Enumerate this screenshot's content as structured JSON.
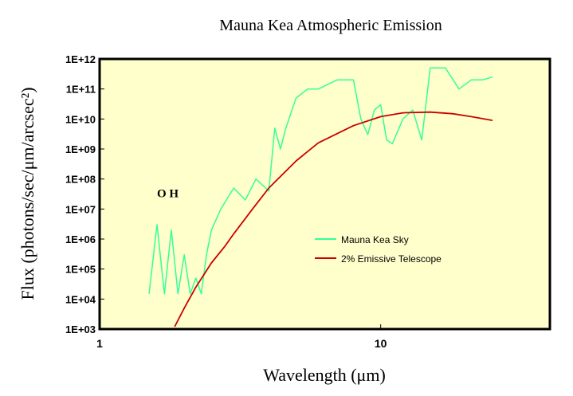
{
  "chart_data": {
    "type": "line",
    "title": "Mauna Kea Atmospheric Emission",
    "xlabel": "Wavelength (μm)",
    "ylabel": "Flux (photons/sec/μm/arcsec²)",
    "xscale": "log",
    "yscale": "log",
    "xlim": [
      1,
      40
    ],
    "ylim": [
      1000,
      1000000000000
    ],
    "xticks": [
      {
        "value": 1,
        "label": "1"
      },
      {
        "value": 10,
        "label": "10"
      }
    ],
    "yticks": [
      {
        "value": 1000,
        "label": "1E+03"
      },
      {
        "value": 10000,
        "label": "1E+04"
      },
      {
        "value": 100000,
        "label": "1E+05"
      },
      {
        "value": 1000000,
        "label": "1E+06"
      },
      {
        "value": 10000000,
        "label": "1E+07"
      },
      {
        "value": 100000000,
        "label": "1E+08"
      },
      {
        "value": 1000000000,
        "label": "1E+09"
      },
      {
        "value": 10000000000,
        "label": "1E+10"
      },
      {
        "value": 100000000000,
        "label": "1E+11"
      },
      {
        "value": 1000000000000,
        "label": "1E+12"
      }
    ],
    "grid": false,
    "legend_position": "right-center",
    "background_color": "#ffffcc",
    "annotations": [
      {
        "text": "O H",
        "x": 1.6,
        "y": 25000000
      }
    ],
    "series": [
      {
        "name": "Mauna Kea Sky",
        "color": "#33ff99",
        "x": [
          1.5,
          1.6,
          1.7,
          1.8,
          1.9,
          2.0,
          2.1,
          2.2,
          2.3,
          2.4,
          2.5,
          2.7,
          3.0,
          3.3,
          3.6,
          4.0,
          4.2,
          4.4,
          4.6,
          5.0,
          5.5,
          6.0,
          7.0,
          8.0,
          8.5,
          9.0,
          9.5,
          10.0,
          10.5,
          11.0,
          12.0,
          13.0,
          14.0,
          15.0,
          17.0,
          19.0,
          21.0,
          23.0,
          25.0
        ],
        "y": [
          15000.0,
          3000000.0,
          15000.0,
          2000000.0,
          15000.0,
          300000.0,
          15000.0,
          50000.0,
          15000.0,
          300000.0,
          2000000.0,
          10000000.0,
          50000000.0,
          20000000.0,
          100000000.0,
          40000000.0,
          5000000000.0,
          1000000000.0,
          5000000000.0,
          50000000000.0,
          100000000000.0,
          100000000000.0,
          200000000000.0,
          200000000000.0,
          10000000000.0,
          3000000000.0,
          20000000000.0,
          30000000000.0,
          2000000000.0,
          1500000000.0,
          10000000000.0,
          20000000000.0,
          2000000000.0,
          500000000000.0,
          500000000000.0,
          100000000000.0,
          200000000000.0,
          200000000000.0,
          250000000000.0
        ]
      },
      {
        "name": "2% Emissive Telescope",
        "color": "#cc0000",
        "x": [
          1.85,
          2.0,
          2.2,
          2.5,
          2.8,
          3.0,
          3.5,
          4.0,
          5.0,
          6.0,
          8.0,
          10.0,
          12.0,
          15.0,
          18.0,
          21.0,
          25.0
        ],
        "y": [
          1200.0,
          5000.0,
          25000.0,
          160000.0,
          600000.0,
          1500000.0,
          10000000.0,
          50000000.0,
          400000000.0,
          1600000000.0,
          6000000000.0,
          12000000000.0,
          16000000000.0,
          17000000000.0,
          15000000000.0,
          12000000000.0,
          9000000000.0
        ]
      }
    ]
  }
}
